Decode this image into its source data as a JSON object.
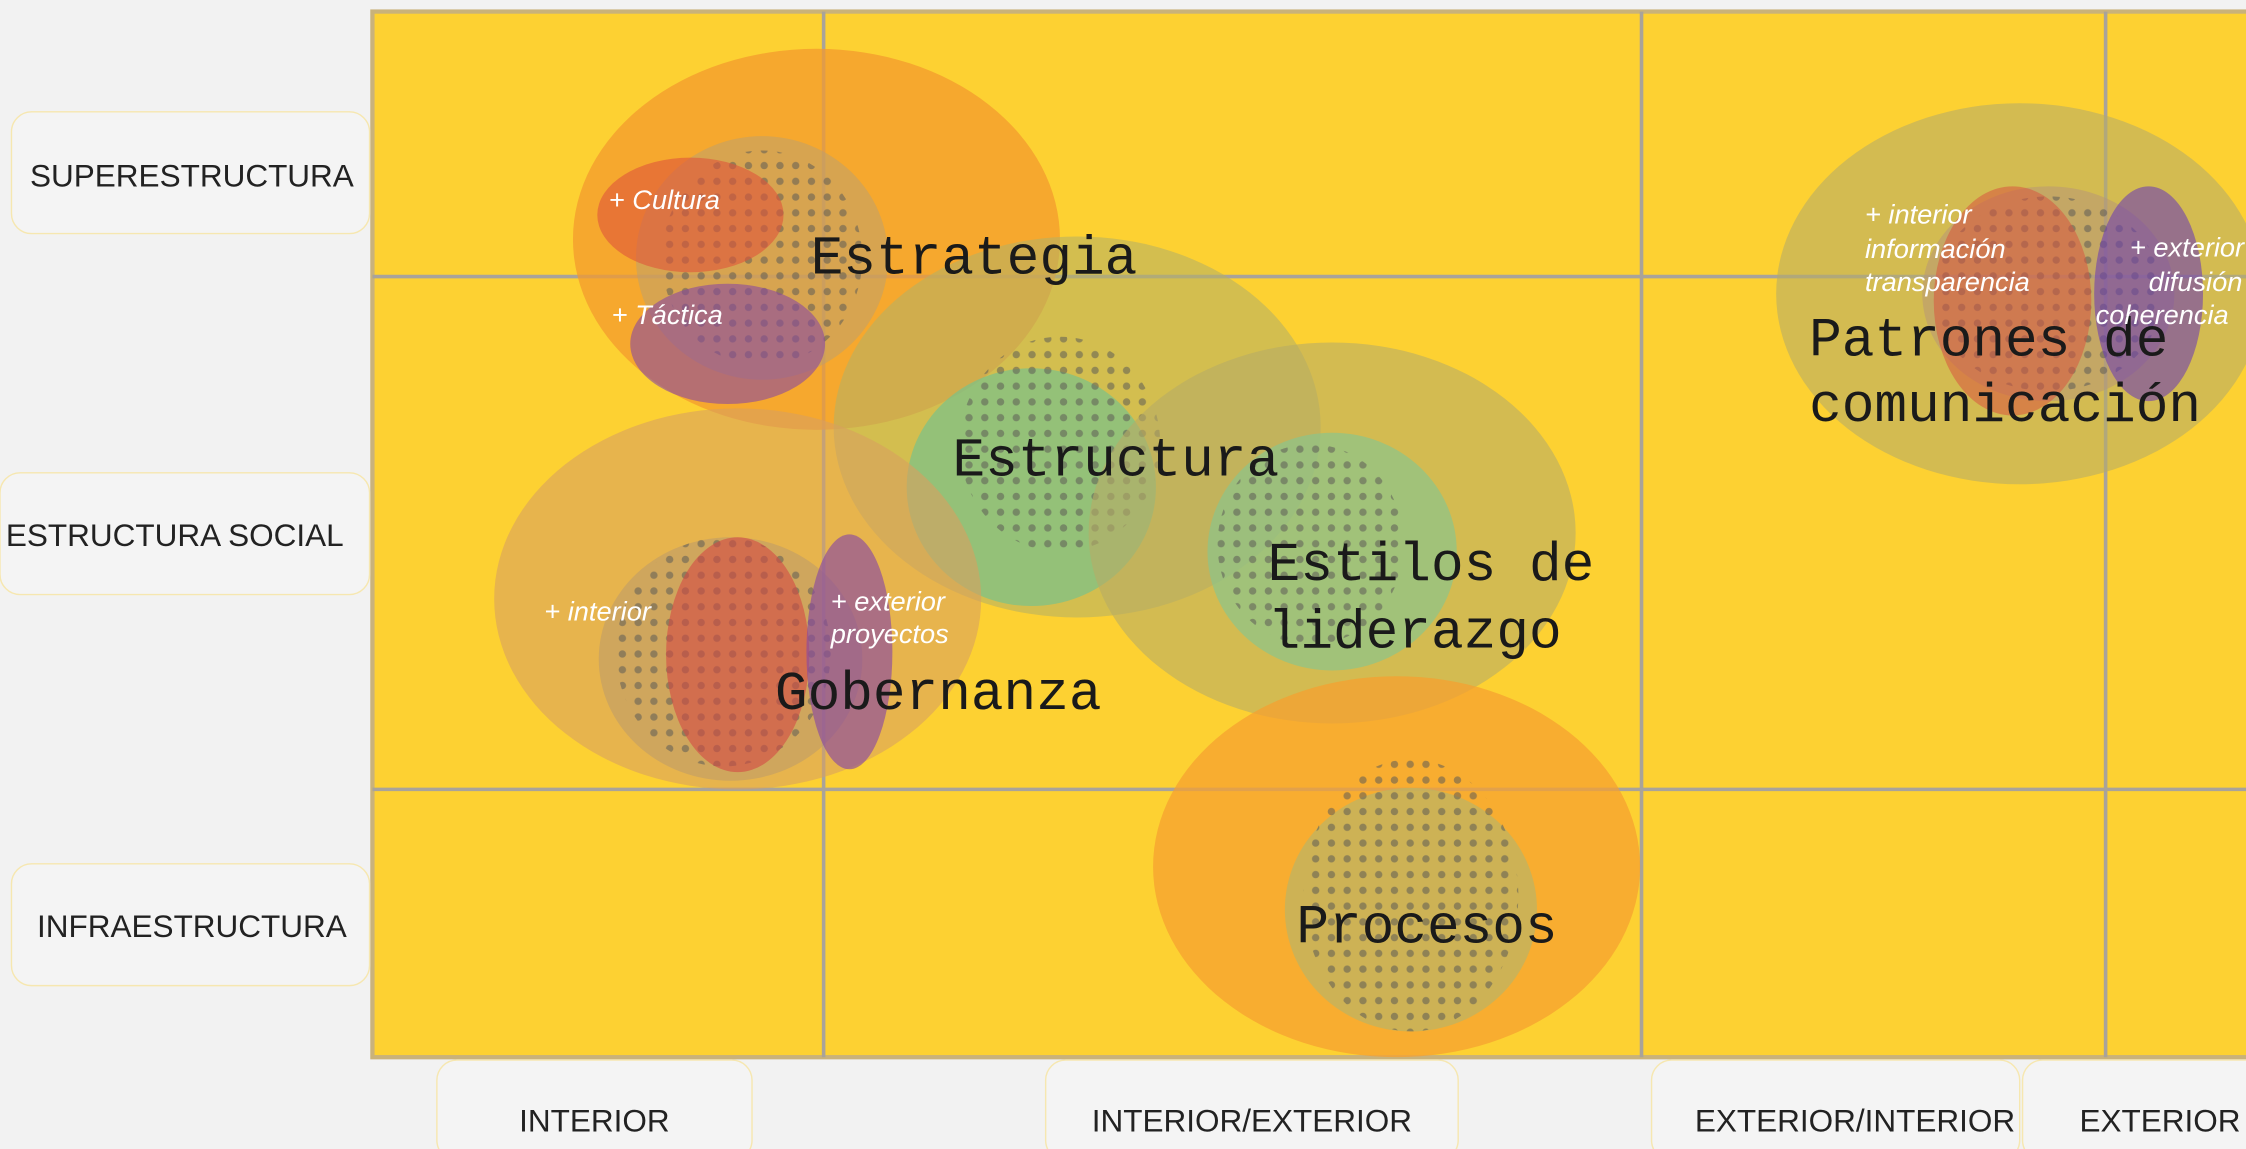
{
  "rows": [
    "SUPERESTRUCTURA",
    "ESTRUCTURA SOCIAL",
    "INFRAESTRUCTURA"
  ],
  "columns": [
    "INTERIOR",
    "INTERIOR/EXTERIOR",
    "EXTERIOR/INTERIOR",
    "EXTERIOR"
  ],
  "blobs": [
    {
      "lines": [
        "Estrategia"
      ]
    },
    {
      "lines": [
        "Estructura"
      ]
    },
    {
      "lines": [
        "Estilos de",
        "liderazgo"
      ]
    },
    {
      "lines": [
        "Gobernanza"
      ]
    },
    {
      "lines": [
        "Procesos"
      ]
    },
    {
      "lines": [
        "Patrones de",
        "comunicación"
      ]
    }
  ],
  "notes": [
    {
      "lines": [
        "+ Cultura"
      ]
    },
    {
      "lines": [
        "+ Táctica"
      ]
    },
    {
      "lines": [
        "+ interior"
      ]
    },
    {
      "lines": [
        "+ exterior",
        "proyectos"
      ]
    },
    {
      "lines": [
        "+ interior",
        "información",
        "transparencia"
      ]
    },
    {
      "lines": [
        "+ exterior",
        "difusión",
        "coherencia"
      ]
    }
  ]
}
